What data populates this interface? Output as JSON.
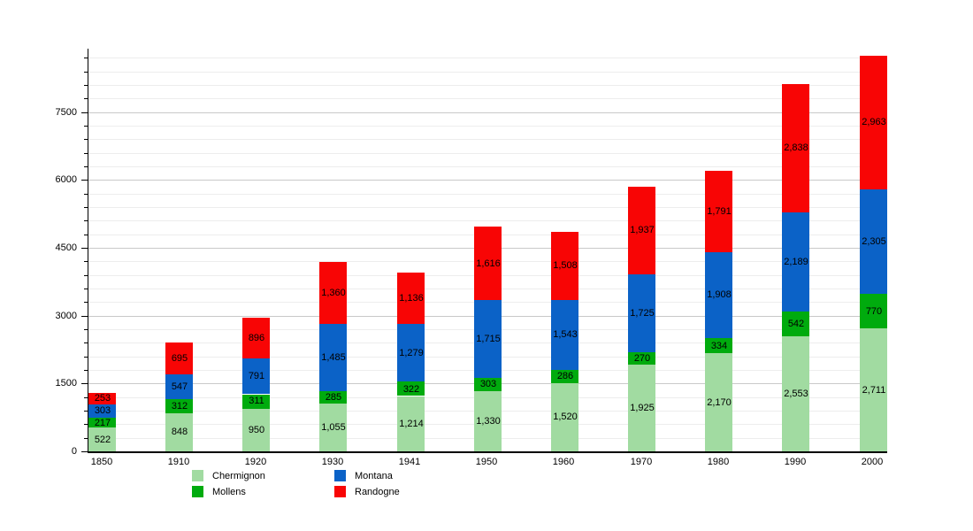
{
  "chart_data": {
    "type": "bar",
    "stacked": true,
    "title": "",
    "xlabel": "",
    "ylabel": "",
    "categories": [
      "1850",
      "1910",
      "1920",
      "1930",
      "1941",
      "1950",
      "1960",
      "1970",
      "1980",
      "1990",
      "2000"
    ],
    "series": [
      {
        "name": "Chermignon",
        "color": "#a1dba1",
        "values": [
          522,
          848,
          950,
          1055,
          1214,
          1330,
          1520,
          1925,
          2170,
          2553,
          2711
        ]
      },
      {
        "name": "Mollens",
        "color": "#00ab0e",
        "values": [
          217,
          312,
          311,
          285,
          322,
          303,
          286,
          270,
          334,
          542,
          770
        ]
      },
      {
        "name": "Montana",
        "color": "#0b62c7",
        "values": [
          303,
          547,
          791,
          1485,
          1279,
          1715,
          1543,
          1725,
          1908,
          2189,
          2305
        ]
      },
      {
        "name": "Randogne",
        "color": "#f80505",
        "values": [
          253,
          695,
          896,
          1360,
          1136,
          1616,
          1508,
          1937,
          1791,
          2838,
          2963
        ]
      }
    ],
    "y_tick_labels": [
      "0",
      "1500",
      "3000",
      "4500",
      "6000",
      "7500"
    ],
    "y_tick_values": [
      0,
      1500,
      3000,
      4500,
      6000,
      7500
    ],
    "ylim": [
      0,
      8900
    ],
    "minor_grid_step": 300,
    "major_grid_step": 1500,
    "grid": true,
    "legend_position": "bottom",
    "legend_columns": [
      [
        "Chermignon",
        "Mollens"
      ],
      [
        "Montana",
        "Randogne"
      ]
    ],
    "value_labels_shown": true,
    "axis_color": "#000000",
    "major_grid_color": "#c9c9c9",
    "minor_grid_color": "#ededed"
  }
}
